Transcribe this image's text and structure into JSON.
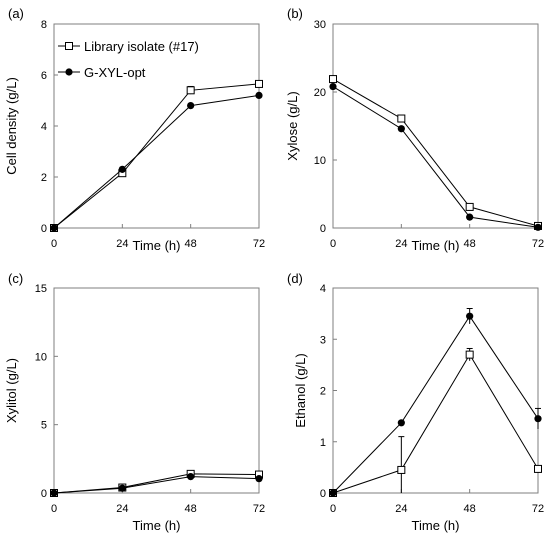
{
  "figure_title": "",
  "chart_data": [
    {
      "type": "line",
      "panel": "(a)",
      "title": "",
      "xlabel": "Time (h)",
      "ylabel": "Cell density (g/L)",
      "x": [
        0,
        24,
        48,
        72
      ],
      "xticks": [
        "0",
        "24",
        "48",
        "72"
      ],
      "xlim": [
        0,
        72
      ],
      "ylim": [
        0,
        8
      ],
      "yticks": [
        "0",
        "2",
        "4",
        "6",
        "8"
      ],
      "grid": false,
      "legend": {
        "placement": "top-left",
        "entries": [
          {
            "label": "Library isolate (#17)",
            "marker": "open-square"
          },
          {
            "label": "G-XYL-opt",
            "marker": "filled-circle"
          }
        ]
      },
      "series": [
        {
          "name": "Library isolate (#17)",
          "marker": "open-square",
          "values": [
            0,
            2.15,
            5.4,
            5.65
          ],
          "errors": [
            0,
            0.05,
            0.15,
            0.1
          ]
        },
        {
          "name": "G-XYL-opt",
          "marker": "filled-circle",
          "values": [
            0,
            2.3,
            4.8,
            5.2
          ],
          "errors": [
            0,
            0.05,
            0.05,
            0.05
          ]
        }
      ]
    },
    {
      "type": "line",
      "panel": "(b)",
      "title": "",
      "xlabel": "Time (h)",
      "ylabel": "Xylose (g/L)",
      "x": [
        0,
        24,
        48,
        72
      ],
      "xticks": [
        "0",
        "24",
        "48",
        "72"
      ],
      "xlim": [
        0,
        72
      ],
      "ylim": [
        0,
        30
      ],
      "yticks": [
        "0",
        "10",
        "20",
        "30"
      ],
      "grid": false,
      "series": [
        {
          "name": "Library isolate (#17)",
          "marker": "open-square",
          "values": [
            21.9,
            16.1,
            3.1,
            0.3
          ],
          "errors": [
            0,
            0,
            0,
            0
          ]
        },
        {
          "name": "G-XYL-opt",
          "marker": "filled-circle",
          "values": [
            20.8,
            14.6,
            1.6,
            0.1
          ],
          "errors": [
            0,
            0,
            0,
            0
          ]
        }
      ]
    },
    {
      "type": "line",
      "panel": "(c)",
      "title": "",
      "xlabel": "Time (h)",
      "ylabel": "Xylitol (g/L)",
      "x": [
        0,
        24,
        48,
        72
      ],
      "xticks": [
        "0",
        "24",
        "48",
        "72"
      ],
      "xlim": [
        0,
        72
      ],
      "ylim": [
        0,
        15
      ],
      "yticks": [
        "0",
        "5",
        "10",
        "15"
      ],
      "grid": false,
      "series": [
        {
          "name": "Library isolate (#17)",
          "marker": "open-square",
          "values": [
            0,
            0.4,
            1.4,
            1.35
          ],
          "errors": [
            0,
            0,
            0,
            0
          ]
        },
        {
          "name": "G-XYL-opt",
          "marker": "filled-circle",
          "values": [
            0,
            0.35,
            1.2,
            1.05
          ],
          "errors": [
            0,
            0,
            0,
            0
          ]
        }
      ]
    },
    {
      "type": "line",
      "panel": "(d)",
      "title": "",
      "xlabel": "Time (h)",
      "ylabel": "Ethanol (g/L)",
      "x": [
        0,
        24,
        48,
        72
      ],
      "xticks": [
        "0",
        "24",
        "48",
        "72"
      ],
      "xlim": [
        0,
        72
      ],
      "ylim": [
        0,
        4
      ],
      "yticks": [
        "0",
        "1",
        "2",
        "3",
        "4"
      ],
      "grid": false,
      "series": [
        {
          "name": "Library isolate (#17)",
          "marker": "open-square",
          "values": [
            0,
            0.45,
            2.7,
            0.47
          ],
          "errors": [
            0,
            0.65,
            0.12,
            0
          ]
        },
        {
          "name": "G-XYL-opt",
          "marker": "filled-circle",
          "values": [
            0,
            1.37,
            3.45,
            1.45
          ],
          "errors": [
            0,
            0,
            0.15,
            0.2
          ]
        }
      ]
    }
  ]
}
